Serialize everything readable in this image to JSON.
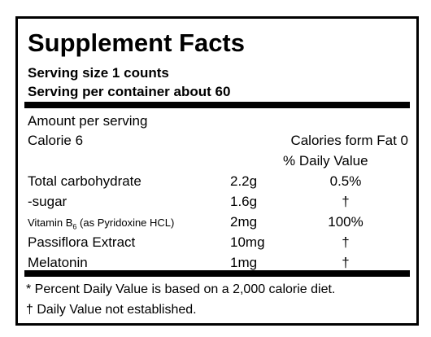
{
  "header": {
    "title": "Supplement Facts",
    "serving_size": "Serving size 1 counts",
    "servings_per_container": "Serving per container about 60"
  },
  "amount_per_serving": "Amount per serving",
  "calories": "Calorie 6",
  "calories_from_fat": "Calories form Fat 0",
  "daily_value_heading": "% Daily Value",
  "rows": [
    {
      "name": "Total carbohydrate",
      "amount": "2.2g",
      "dv": "0.5%"
    },
    {
      "name": "-sugar",
      "amount": "1.6g",
      "dv": "†"
    },
    {
      "name": "Vitamin B",
      "name_sub": "6",
      "name_suffix": "(as Pyridoxine HCL)",
      "amount": "2mg",
      "dv": "100%"
    },
    {
      "name": "Passiflora Extract",
      "amount": "10mg",
      "dv": "†"
    },
    {
      "name": "Melatonin",
      "amount": "1mg",
      "dv": "†"
    }
  ],
  "footnotes": [
    "* Percent Daily Value is based on a 2,000 calorie diet.",
    "† Daily Value not established."
  ]
}
